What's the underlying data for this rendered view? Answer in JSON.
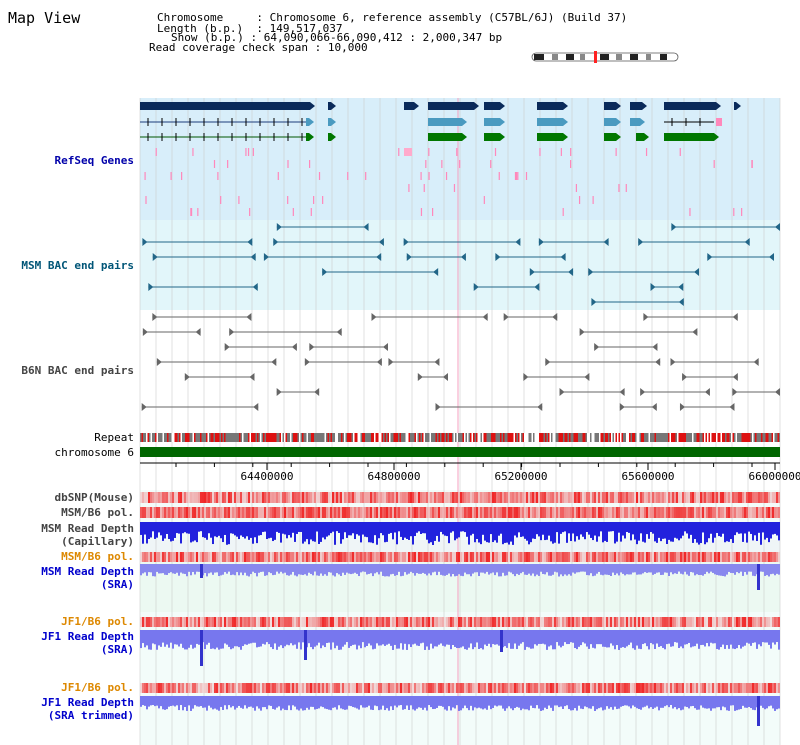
{
  "title": "Map View",
  "info": {
    "chromosome_key": "Chromosome",
    "chromosome_val": "Chromosome 6, reference assembly (C57BL/6J) (Build 37)",
    "length_key": "Length (b.p.)",
    "length_val": "149,517,037",
    "show_key": "Show (b.p.)",
    "show_val": "64,090,066-66,090,412 : 2,000,347 bp",
    "span_key": "Read coverage check span",
    "span_val": "10,000"
  },
  "tracks": {
    "refseq": "RefSeq Genes",
    "msm_bac": "MSM BAC end pairs",
    "b6n_bac": "B6N BAC end pairs",
    "repeat": "Repeat",
    "chromosome": "chromosome 6",
    "dbsnp": "dbSNP(Mouse)",
    "msm_b6_pol_1": "MSM/B6 pol.",
    "msm_depth_cap_1": "MSM Read Depth",
    "msm_depth_cap_2": "(Capillary)",
    "msm_b6_pol_2": "MSM/B6 pol.",
    "msm_depth_sra_1": "MSM Read Depth",
    "msm_depth_sra_2": "(SRA)",
    "jf1_b6_pol_1": "JF1/B6 pol.",
    "jf1_depth_sra_1": "JF1 Read Depth",
    "jf1_depth_sra_2": "(SRA)",
    "jf1_b6_pol_2": "JF1/B6 pol.",
    "jf1_depth_trim_1": "JF1 Read Depth",
    "jf1_depth_trim_2": "(SRA trimmed)"
  },
  "axis": {
    "ticks": [
      "64400000",
      "64800000",
      "65200000",
      "65600000",
      "66000000"
    ]
  },
  "colors": {
    "refseq_label": "#0000aa",
    "msm_bac_label": "#005577",
    "b6n_bac_label": "#444444",
    "pol_label_orange": "#dd8800",
    "depth_label": "#0000cc",
    "gene_navy": "#0a2a5a",
    "gene_teal": "#4a9ac0",
    "gene_green": "#007700",
    "chromosome_green": "#006600"
  }
}
